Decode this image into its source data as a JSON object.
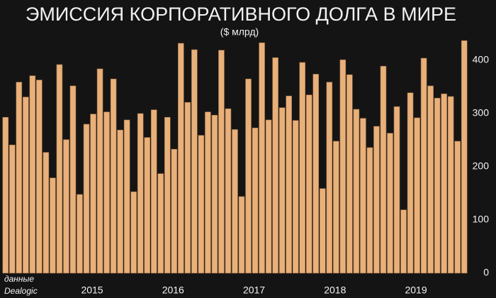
{
  "chart_data": {
    "type": "bar",
    "title": "ЭМИССИЯ КОРПОРАТИВНОГО ДОЛГА В  МИРЕ",
    "subtitle": "($ млрд)",
    "source": [
      "данные",
      "Dealogic"
    ],
    "categories": [
      null,
      null,
      null,
      null,
      null,
      null,
      null,
      null,
      null,
      null,
      null,
      null,
      "2015",
      null,
      null,
      null,
      null,
      null,
      null,
      null,
      null,
      null,
      null,
      null,
      "2016",
      null,
      null,
      null,
      null,
      null,
      null,
      null,
      null,
      null,
      null,
      null,
      "2017",
      null,
      null,
      null,
      null,
      null,
      null,
      null,
      null,
      null,
      null,
      null,
      "2018",
      null,
      null,
      null,
      null,
      null,
      null,
      null,
      null,
      null,
      null,
      null,
      "2019",
      null,
      null,
      null,
      null,
      null,
      null,
      null,
      null
    ],
    "values": [
      293,
      241,
      359,
      331,
      371,
      363,
      227,
      179,
      392,
      251,
      352,
      148,
      280,
      299,
      384,
      303,
      365,
      269,
      288,
      153,
      300,
      255,
      307,
      187,
      293,
      233,
      432,
      321,
      420,
      259,
      303,
      297,
      419,
      309,
      270,
      144,
      365,
      273,
      433,
      288,
      405,
      311,
      333,
      287,
      396,
      335,
      374,
      159,
      359,
      248,
      401,
      373,
      308,
      291,
      236,
      276,
      389,
      263,
      313,
      119,
      339,
      292,
      404,
      352,
      329,
      337,
      332,
      248,
      437
    ],
    "color": "#e8b07a",
    "ylim": [
      0,
      440
    ],
    "yticks": [
      0,
      100,
      200,
      300,
      400
    ],
    "grid": false
  }
}
